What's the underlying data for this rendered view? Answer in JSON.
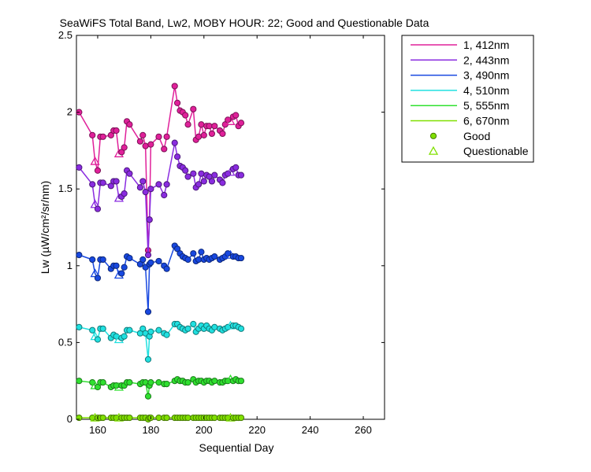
{
  "chart_data": {
    "type": "line",
    "title": "SeaWiFS Total Band,  Lw2, MOBY HOUR: 22;  Good and Questionable Data",
    "xlabel": "Sequential Day",
    "ylabel": "Lw (µW/cm²/sr/nm)",
    "xlim": [
      152,
      268
    ],
    "ylim": [
      0,
      2.5
    ],
    "xticks": [
      160,
      180,
      200,
      220,
      240,
      260
    ],
    "yticks": [
      0,
      0.5,
      1,
      1.5,
      2,
      2.5
    ],
    "ytick_labels": [
      "0",
      "0.5",
      "1",
      "1.5",
      "2",
      "2.5"
    ],
    "grid": false,
    "legend_position": "outside-top-right",
    "marker_legend": [
      {
        "label": "Good",
        "marker": "circle",
        "color": "#80e000"
      },
      {
        "label": "Questionable",
        "marker": "triangle",
        "color": "#80e000"
      }
    ],
    "x": [
      153,
      158,
      159,
      160,
      161,
      162,
      165,
      166,
      167,
      168,
      169,
      170,
      171,
      172,
      176,
      177,
      178,
      179,
      179.5,
      180,
      183,
      185,
      186,
      189,
      190,
      191,
      192,
      193,
      194,
      196,
      197,
      198,
      199,
      200,
      201,
      202,
      203,
      204,
      206,
      207,
      208,
      209,
      210,
      211,
      212,
      213,
      214
    ],
    "questionable_x": [
      159,
      168,
      210
    ],
    "series": [
      {
        "name": "1, 412nm",
        "color": "#e0209a",
        "values": [
          2.0,
          1.85,
          1.68,
          1.62,
          1.84,
          1.84,
          1.85,
          1.88,
          1.88,
          1.73,
          1.74,
          1.77,
          1.94,
          1.92,
          1.81,
          1.85,
          1.78,
          1.1,
          1.3,
          1.79,
          1.84,
          1.76,
          1.84,
          2.17,
          2.06,
          2.01,
          2.0,
          1.98,
          1.92,
          2.02,
          1.82,
          1.84,
          1.92,
          1.85,
          1.91,
          1.91,
          1.86,
          1.91,
          1.88,
          1.86,
          1.92,
          1.95,
          1.94,
          1.97,
          1.98,
          1.91,
          1.93
        ]
      },
      {
        "name": "2, 443nm",
        "color": "#8a2ce0",
        "values": [
          1.64,
          1.53,
          1.4,
          1.37,
          1.54,
          1.54,
          1.52,
          1.55,
          1.55,
          1.44,
          1.45,
          1.47,
          1.62,
          1.6,
          1.51,
          1.55,
          1.48,
          1.07,
          1.3,
          1.5,
          1.53,
          1.46,
          1.53,
          1.8,
          1.71,
          1.65,
          1.64,
          1.62,
          1.58,
          1.6,
          1.51,
          1.53,
          1.6,
          1.55,
          1.59,
          1.58,
          1.55,
          1.59,
          1.56,
          1.54,
          1.59,
          1.6,
          1.61,
          1.63,
          1.64,
          1.59,
          1.59
        ]
      },
      {
        "name": "3, 490nm",
        "color": "#1848e0",
        "values": [
          1.07,
          1.04,
          0.95,
          0.92,
          1.04,
          1.04,
          0.98,
          1.0,
          1.0,
          0.94,
          0.95,
          0.99,
          1.06,
          1.05,
          1.01,
          1.04,
          0.99,
          0.7,
          1.01,
          1.02,
          1.03,
          1.0,
          0.98,
          1.13,
          1.11,
          1.08,
          1.06,
          1.05,
          1.04,
          1.08,
          1.03,
          1.04,
          1.09,
          1.04,
          1.05,
          1.04,
          1.05,
          1.06,
          1.04,
          1.05,
          1.06,
          1.08,
          1.07,
          1.06,
          1.06,
          1.05,
          1.05
        ]
      },
      {
        "name": "4, 510nm",
        "color": "#20e0e0",
        "values": [
          0.6,
          0.58,
          0.54,
          0.52,
          0.59,
          0.59,
          0.53,
          0.55,
          0.54,
          0.52,
          0.53,
          0.54,
          0.58,
          0.58,
          0.56,
          0.59,
          0.56,
          0.39,
          0.54,
          0.57,
          0.58,
          0.56,
          0.55,
          0.62,
          0.62,
          0.6,
          0.59,
          0.58,
          0.59,
          0.62,
          0.57,
          0.59,
          0.61,
          0.59,
          0.61,
          0.59,
          0.58,
          0.6,
          0.59,
          0.58,
          0.59,
          0.6,
          0.61,
          0.61,
          0.61,
          0.6,
          0.59
        ]
      },
      {
        "name": "5, 555nm",
        "color": "#30e030",
        "values": [
          0.25,
          0.24,
          0.22,
          0.21,
          0.24,
          0.24,
          0.21,
          0.22,
          0.22,
          0.21,
          0.22,
          0.22,
          0.24,
          0.24,
          0.23,
          0.24,
          0.24,
          0.15,
          0.22,
          0.24,
          0.24,
          0.23,
          0.23,
          0.25,
          0.26,
          0.25,
          0.25,
          0.24,
          0.24,
          0.26,
          0.24,
          0.25,
          0.25,
          0.24,
          0.25,
          0.25,
          0.24,
          0.25,
          0.24,
          0.24,
          0.25,
          0.25,
          0.26,
          0.25,
          0.26,
          0.25,
          0.25
        ]
      },
      {
        "name": "6, 670nm",
        "color": "#80e000",
        "values": [
          0.01,
          0.01,
          0.01,
          0.01,
          0.01,
          0.01,
          0.01,
          0.01,
          0.01,
          0.01,
          0.01,
          0.01,
          0.01,
          0.01,
          0.01,
          0.01,
          0.01,
          0.0,
          0.01,
          0.01,
          0.01,
          0.01,
          0.01,
          0.01,
          0.01,
          0.01,
          0.01,
          0.01,
          0.01,
          0.01,
          0.01,
          0.01,
          0.01,
          0.01,
          0.01,
          0.01,
          0.01,
          0.01,
          0.01,
          0.01,
          0.01,
          0.01,
          0.01,
          0.01,
          0.01,
          0.01,
          0.01
        ]
      }
    ]
  }
}
